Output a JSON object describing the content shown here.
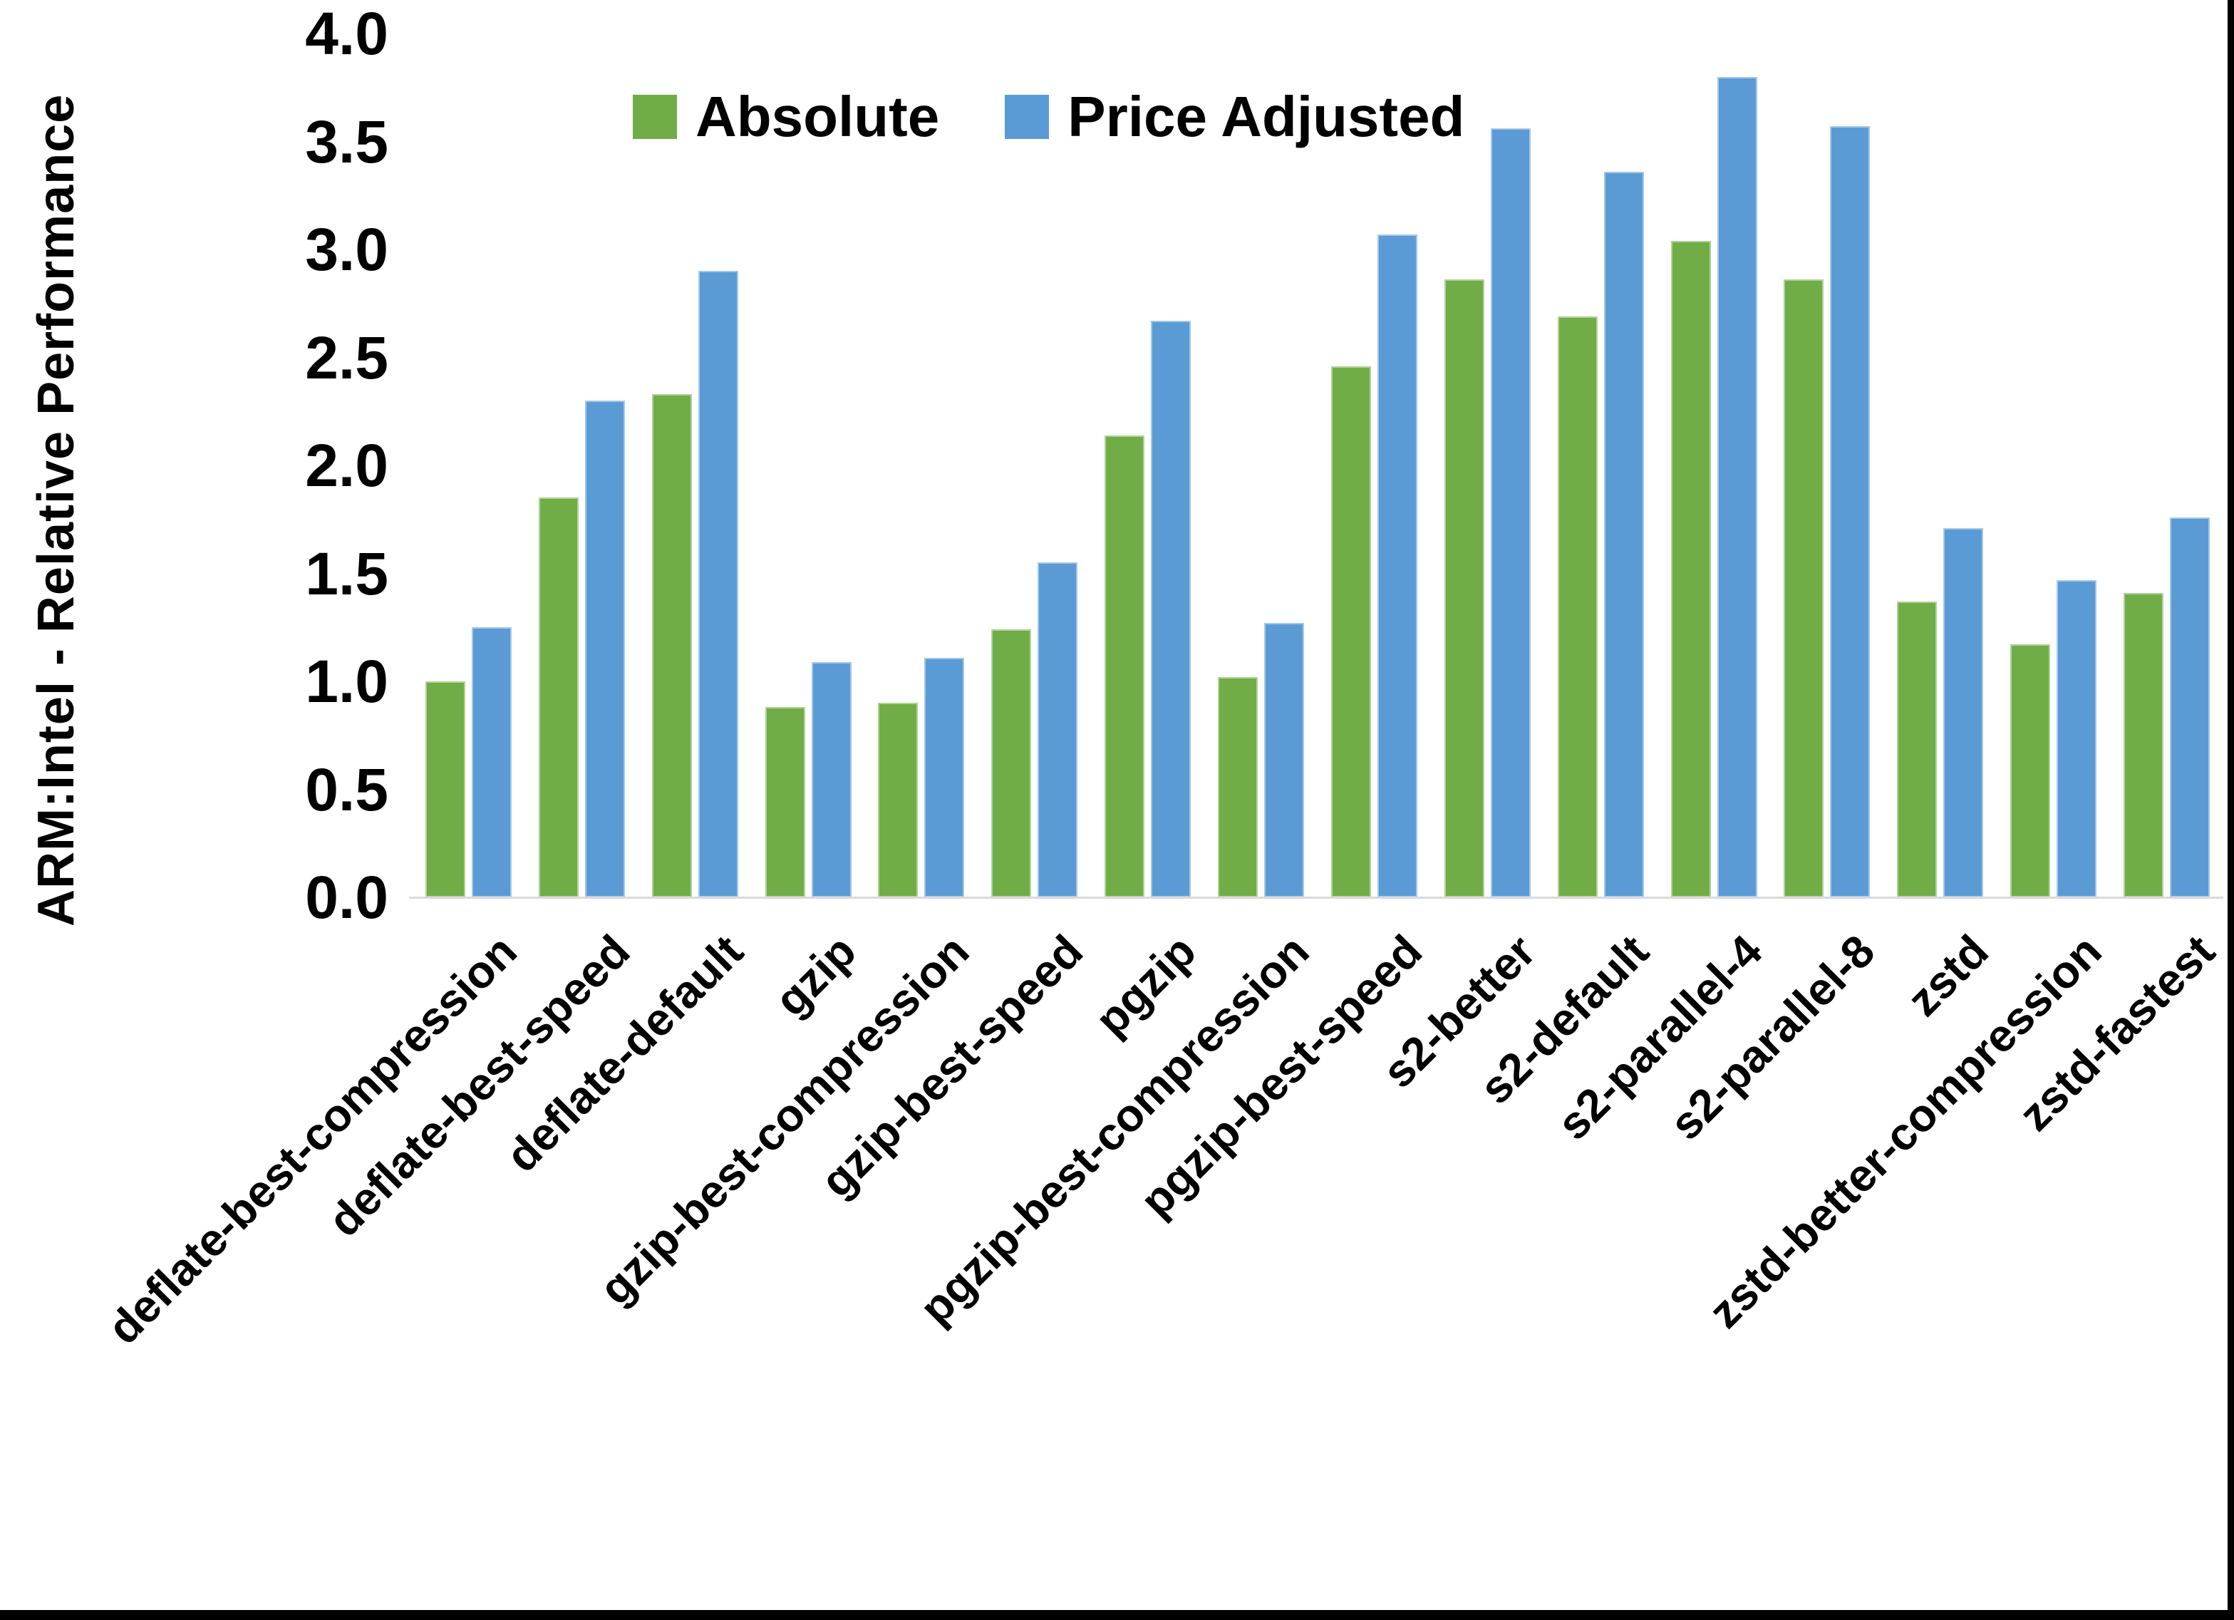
{
  "chart_data": {
    "type": "bar",
    "title": "",
    "xlabel": "",
    "ylabel": "ARM:Intel - Relative Performance",
    "ylim": [
      0,
      4
    ],
    "ytick_step": 0.5,
    "ytick_labels": [
      "0.0",
      "0.5",
      "1.0",
      "1.5",
      "2.0",
      "2.5",
      "3.0",
      "3.5",
      "4.0"
    ],
    "grid": false,
    "legend_position": "top-center",
    "categories": [
      "deflate-best-compression",
      "deflate-best-speed",
      "deflate-default",
      "gzip",
      "gzip-best-compression",
      "gzip-best-speed",
      "pgzip",
      "pgzip-best-compression",
      "pgzip-best-speed",
      "s2-better",
      "s2-default",
      "s2-parallel-4",
      "s2-parallel-8",
      "zstd",
      "zstd-better-compression",
      "zstd-fastest"
    ],
    "series": [
      {
        "name": "Absolute",
        "color": "#70AD47",
        "values": [
          1.0,
          1.85,
          2.33,
          0.88,
          0.9,
          1.24,
          2.14,
          1.02,
          2.46,
          2.86,
          2.69,
          3.04,
          2.86,
          1.37,
          1.17,
          1.41
        ]
      },
      {
        "name": "Price Adjusted",
        "color": "#5B9BD5",
        "values": [
          1.25,
          2.3,
          2.9,
          1.09,
          1.11,
          1.55,
          2.67,
          1.27,
          3.07,
          3.56,
          3.36,
          3.8,
          3.57,
          1.71,
          1.47,
          1.76
        ]
      }
    ]
  },
  "colors": {
    "background": "#FFFFFF",
    "axis_line": "#D9D9D9",
    "text": "#000000",
    "frame_edge": "#000000"
  }
}
